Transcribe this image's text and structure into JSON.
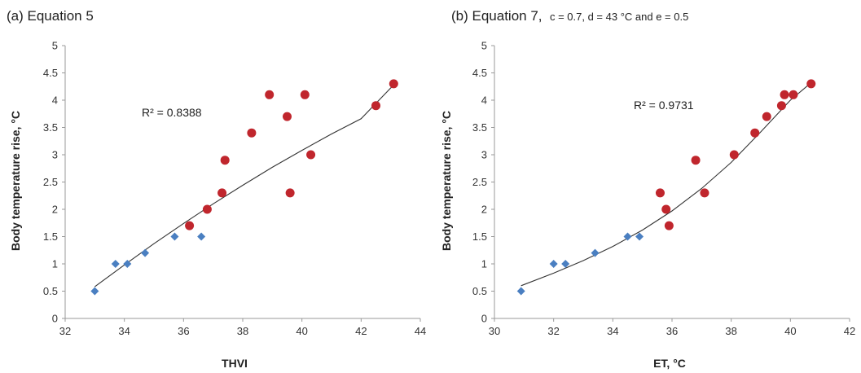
{
  "chart_data": [
    {
      "type": "scatter",
      "title": "(a) Equation 5",
      "subtitle": "",
      "xlabel": "THVI",
      "ylabel": "Body temperature rise, °C",
      "xlim": [
        32,
        44
      ],
      "ylim": [
        0,
        5
      ],
      "xticks": [
        "32",
        "34",
        "36",
        "38",
        "40",
        "42",
        "44"
      ],
      "yticks": [
        "0",
        "0.5",
        "1",
        "1.5",
        "2",
        "2.5",
        "3",
        "3.5",
        "4",
        "4.5",
        "5"
      ],
      "grid": false,
      "legend": "none",
      "annotation": "R² = 0.8388",
      "series": [
        {
          "marker": "diamond",
          "color": "#4a7fc1",
          "x": [
            33.0,
            33.7,
            34.1,
            34.7,
            35.7,
            36.6
          ],
          "y": [
            0.5,
            1.0,
            1.0,
            1.2,
            1.5,
            1.5
          ]
        },
        {
          "marker": "circle",
          "color": "#c0262d",
          "x": [
            36.2,
            36.8,
            37.3,
            37.4,
            38.3,
            38.9,
            39.5,
            39.6,
            40.1,
            40.3,
            42.5,
            43.1
          ],
          "y": [
            1.7,
            2.0,
            2.3,
            2.9,
            3.4,
            4.1,
            3.7,
            2.3,
            4.1,
            3.0,
            3.9,
            4.3
          ]
        }
      ],
      "trendline": {
        "type": "polynomial",
        "x": [
          33,
          34,
          35,
          36,
          37,
          38,
          39,
          40,
          41,
          42,
          43.1
        ],
        "y": [
          0.58,
          0.98,
          1.37,
          1.74,
          2.1,
          2.44,
          2.77,
          3.08,
          3.38,
          3.66,
          4.28
        ]
      }
    },
    {
      "type": "scatter",
      "title": "(b) Equation 7,",
      "subtitle": "c = 0.7, d = 43 °C and e = 0.5",
      "xlabel": "ET, °C",
      "ylabel": "Body temperature rise, °C",
      "xlim": [
        30,
        42
      ],
      "ylim": [
        0,
        5
      ],
      "xticks": [
        "30",
        "32",
        "34",
        "36",
        "38",
        "40",
        "42"
      ],
      "yticks": [
        "0",
        "0.5",
        "1",
        "1.5",
        "2",
        "2.5",
        "3",
        "3.5",
        "4",
        "4.5",
        "5"
      ],
      "grid": false,
      "legend": "none",
      "annotation": "R² = 0.9731",
      "series": [
        {
          "marker": "diamond",
          "color": "#4a7fc1",
          "x": [
            30.9,
            32.0,
            32.4,
            33.4,
            34.5,
            34.9
          ],
          "y": [
            0.5,
            1.0,
            1.0,
            1.2,
            1.5,
            1.5
          ]
        },
        {
          "marker": "circle",
          "color": "#c0262d",
          "x": [
            35.6,
            35.8,
            35.9,
            36.8,
            37.1,
            38.1,
            38.8,
            39.2,
            39.7,
            39.8,
            40.1,
            40.7
          ],
          "y": [
            2.3,
            2.0,
            1.7,
            2.9,
            2.3,
            3.0,
            3.4,
            3.7,
            3.9,
            4.1,
            4.1,
            4.3
          ]
        }
      ],
      "trendline": {
        "type": "polynomial",
        "x": [
          30.9,
          32,
          33,
          34,
          35,
          36,
          37,
          38,
          39,
          40,
          40.7
        ],
        "y": [
          0.6,
          0.83,
          1.06,
          1.32,
          1.62,
          1.97,
          2.38,
          2.86,
          3.42,
          4.0,
          4.32
        ]
      }
    }
  ]
}
